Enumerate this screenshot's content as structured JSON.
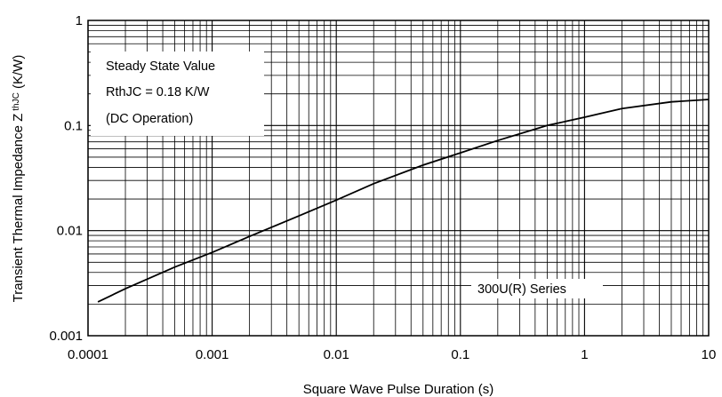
{
  "chart_data": {
    "type": "line",
    "title": "",
    "xlabel": "Square Wave Pulse Duration (s)",
    "ylabel_main": "Transient Thermal Impedance Z",
    "ylabel_sub": "thJC",
    "ylabel_unit": " (K/W)",
    "xscale": "log",
    "yscale": "log",
    "xlim": [
      0.0001,
      10
    ],
    "ylim": [
      0.001,
      1
    ],
    "x_ticks": [
      0.0001,
      0.001,
      0.01,
      0.1,
      1,
      10
    ],
    "x_tick_labels": [
      "0.0001",
      "0.001",
      "0.01",
      "0.1",
      "1",
      "10"
    ],
    "y_ticks": [
      0.001,
      0.01,
      0.1,
      1
    ],
    "y_tick_labels": [
      "0.001",
      "0.01",
      "0.1",
      "1"
    ],
    "grid": "on (major and minor)",
    "series": [
      {
        "x": [
          0.00012,
          0.0002,
          0.0005,
          0.001,
          0.002,
          0.005,
          0.01,
          0.02,
          0.05,
          0.1,
          0.2,
          0.5,
          1,
          2,
          5,
          10
        ],
        "y": [
          0.0021,
          0.0028,
          0.0045,
          0.0062,
          0.0088,
          0.0138,
          0.0195,
          0.028,
          0.042,
          0.055,
          0.072,
          0.1,
          0.12,
          0.145,
          0.168,
          0.177
        ]
      }
    ],
    "annotations": {
      "steady_state": [
        "Steady State Value",
        "RthJC = 0.18 K/W",
        "(DC Operation)"
      ],
      "series_label": "300U(R) Series"
    }
  }
}
